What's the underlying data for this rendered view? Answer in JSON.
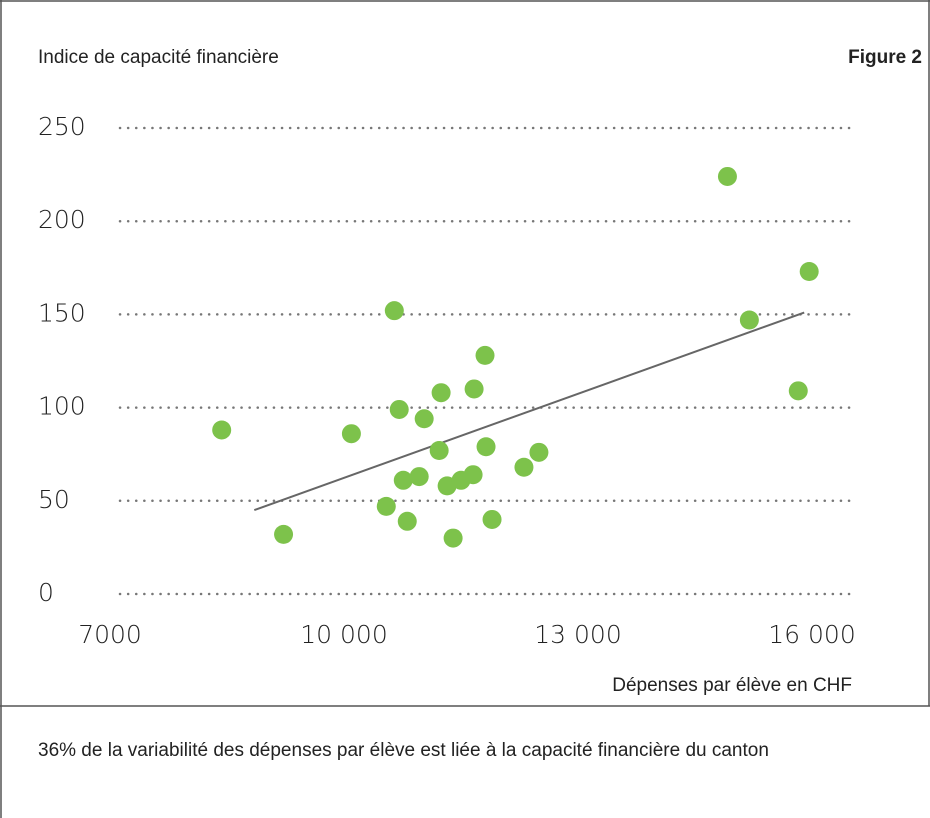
{
  "chart_data": {
    "type": "scatter",
    "ylabel": "Indice de capacité financière",
    "figure_label": "Figure 2",
    "xlabel": "Dépenses par élève en CHF",
    "note": "36% de la variabilité des dépenses par élève est liée à la capacité financière du canton",
    "series": [
      {
        "color": "#7dc24b",
        "x": [
          8432,
          9225,
          10095,
          10542,
          10645,
          10708,
          10760,
          10811,
          10964,
          11028,
          11220,
          11245,
          11322,
          11399,
          11501,
          11655,
          11668,
          11808,
          11821,
          11898,
          12307,
          12499,
          14916,
          15197,
          15824,
          15964
        ],
        "values": [
          88,
          32,
          86,
          47,
          152,
          99,
          61,
          39,
          63,
          94,
          77,
          108,
          58,
          30,
          61,
          64,
          110,
          128,
          79,
          40,
          68,
          76,
          224,
          147,
          109,
          173
        ]
      }
    ],
    "trendline": {
      "color": "#666666",
      "x": [
        8850,
        15900
      ],
      "values": [
        45,
        151
      ]
    },
    "xlim": [
      7000,
      16000
    ],
    "xticks": [
      7000,
      {
        "value": 10000,
        "label": "10 000"
      },
      {
        "value": 13000,
        "label": "13 000"
      },
      {
        "value": 16000,
        "label": "16 000"
      }
    ],
    "ylim": [
      0,
      250
    ],
    "yticks": [
      0,
      50,
      100,
      150,
      200,
      250
    ],
    "grid": true
  }
}
